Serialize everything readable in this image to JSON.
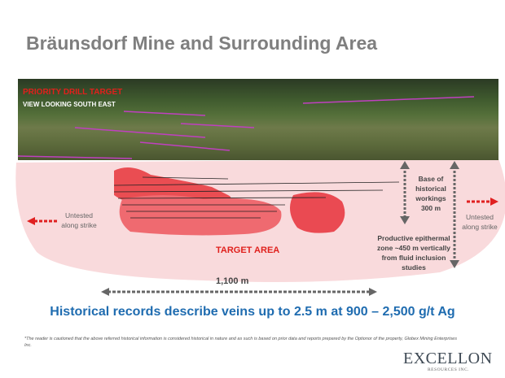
{
  "title": "Bräunsdorf Mine and Surrounding Area",
  "photo": {
    "label_red": "PRIORITY DRILL TARGET",
    "label_white": "VIEW LOOKING SOUTH EAST"
  },
  "diagram": {
    "untested_left": "Untested along strike",
    "untested_right": "Untested along strike",
    "target_area": "TARGET AREA",
    "base_workings": "Base of historical workings 300 m",
    "productive_zone": "Productive epithermal zone ~450 m vertically from fluid inclusion studies",
    "distance": "1,100 m",
    "colors": {
      "target": "#e8343a",
      "halo": "#f7d6d8",
      "arrow_red": "#e02020",
      "arrow_gray": "#666666"
    }
  },
  "headline": "Historical records describe veins up to 2.5 m at 900 – 2,500 g/t Ag",
  "footnote": "*The reader is cautioned that the above referred historical information is considered historical in nature and as such is based on prior data and reports prepared by the Optionor of the property, Globex Mining Enterprises Inc.",
  "logo": {
    "name": "EXCELLON",
    "sub": "RESOURCES INC."
  }
}
